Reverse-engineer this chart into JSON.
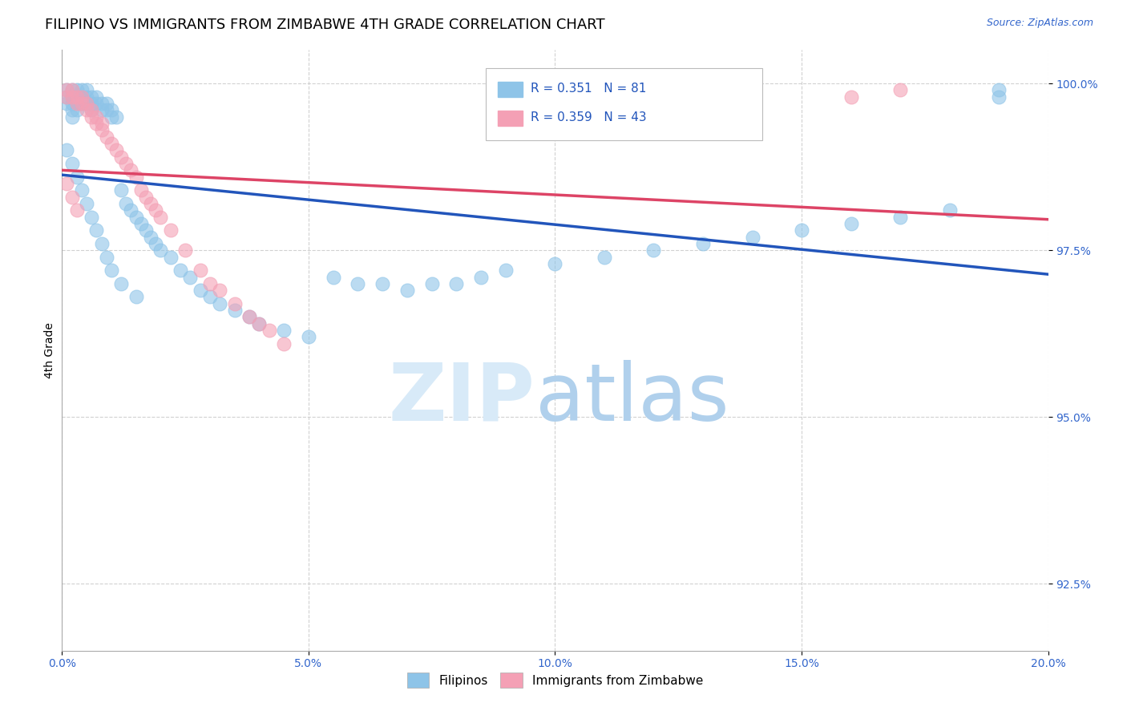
{
  "title": "FILIPINO VS IMMIGRANTS FROM ZIMBABWE 4TH GRADE CORRELATION CHART",
  "source_text": "Source: ZipAtlas.com",
  "ylabel": "4th Grade",
  "xlim": [
    0.0,
    0.2
  ],
  "ylim": [
    0.915,
    1.005
  ],
  "xtick_labels": [
    "0.0%",
    "5.0%",
    "10.0%",
    "15.0%",
    "20.0%"
  ],
  "xtick_vals": [
    0.0,
    0.05,
    0.1,
    0.15,
    0.2
  ],
  "ytick_labels": [
    "92.5%",
    "95.0%",
    "97.5%",
    "100.0%"
  ],
  "ytick_vals": [
    0.925,
    0.95,
    0.975,
    1.0
  ],
  "background_color": "#ffffff",
  "grid_color": "#cccccc",
  "blue_color": "#8EC4E8",
  "pink_color": "#F4A0B5",
  "line_blue": "#2255BB",
  "line_pink": "#DD4466",
  "R_blue": 0.351,
  "N_blue": 81,
  "R_pink": 0.359,
  "N_pink": 43,
  "legend_label_blue": "Filipinos",
  "legend_label_pink": "Immigrants from Zimbabwe",
  "title_fontsize": 13,
  "axis_label_fontsize": 10,
  "tick_fontsize": 10,
  "blue_scatter_x": [
    0.001,
    0.001,
    0.001,
    0.002,
    0.002,
    0.002,
    0.002,
    0.002,
    0.003,
    0.003,
    0.003,
    0.003,
    0.004,
    0.004,
    0.004,
    0.005,
    0.005,
    0.005,
    0.006,
    0.006,
    0.006,
    0.007,
    0.007,
    0.008,
    0.008,
    0.009,
    0.009,
    0.01,
    0.01,
    0.011,
    0.012,
    0.013,
    0.014,
    0.015,
    0.016,
    0.017,
    0.018,
    0.019,
    0.02,
    0.022,
    0.024,
    0.026,
    0.028,
    0.03,
    0.032,
    0.035,
    0.038,
    0.04,
    0.045,
    0.05,
    0.055,
    0.06,
    0.065,
    0.07,
    0.075,
    0.08,
    0.085,
    0.09,
    0.1,
    0.11,
    0.12,
    0.13,
    0.14,
    0.15,
    0.16,
    0.17,
    0.18,
    0.19,
    0.001,
    0.002,
    0.003,
    0.004,
    0.005,
    0.006,
    0.007,
    0.008,
    0.009,
    0.01,
    0.012,
    0.015,
    0.19
  ],
  "blue_scatter_y": [
    0.999,
    0.998,
    0.997,
    0.999,
    0.998,
    0.997,
    0.996,
    0.995,
    0.999,
    0.998,
    0.997,
    0.996,
    0.999,
    0.998,
    0.997,
    0.999,
    0.998,
    0.997,
    0.998,
    0.997,
    0.996,
    0.998,
    0.997,
    0.997,
    0.996,
    0.997,
    0.996,
    0.996,
    0.995,
    0.995,
    0.984,
    0.982,
    0.981,
    0.98,
    0.979,
    0.978,
    0.977,
    0.976,
    0.975,
    0.974,
    0.972,
    0.971,
    0.969,
    0.968,
    0.967,
    0.966,
    0.965,
    0.964,
    0.963,
    0.962,
    0.971,
    0.97,
    0.97,
    0.969,
    0.97,
    0.97,
    0.971,
    0.972,
    0.973,
    0.974,
    0.975,
    0.976,
    0.977,
    0.978,
    0.979,
    0.98,
    0.981,
    0.998,
    0.99,
    0.988,
    0.986,
    0.984,
    0.982,
    0.98,
    0.978,
    0.976,
    0.974,
    0.972,
    0.97,
    0.968,
    0.999
  ],
  "pink_scatter_x": [
    0.001,
    0.001,
    0.002,
    0.002,
    0.003,
    0.003,
    0.004,
    0.004,
    0.005,
    0.005,
    0.006,
    0.006,
    0.007,
    0.007,
    0.008,
    0.008,
    0.009,
    0.01,
    0.011,
    0.012,
    0.013,
    0.014,
    0.015,
    0.016,
    0.017,
    0.018,
    0.019,
    0.02,
    0.022,
    0.025,
    0.028,
    0.03,
    0.032,
    0.035,
    0.038,
    0.04,
    0.042,
    0.045,
    0.001,
    0.002,
    0.003,
    0.16,
    0.17
  ],
  "pink_scatter_y": [
    0.999,
    0.998,
    0.999,
    0.998,
    0.998,
    0.997,
    0.998,
    0.997,
    0.997,
    0.996,
    0.996,
    0.995,
    0.995,
    0.994,
    0.994,
    0.993,
    0.992,
    0.991,
    0.99,
    0.989,
    0.988,
    0.987,
    0.986,
    0.984,
    0.983,
    0.982,
    0.981,
    0.98,
    0.978,
    0.975,
    0.972,
    0.97,
    0.969,
    0.967,
    0.965,
    0.964,
    0.963,
    0.961,
    0.985,
    0.983,
    0.981,
    0.998,
    0.999
  ]
}
